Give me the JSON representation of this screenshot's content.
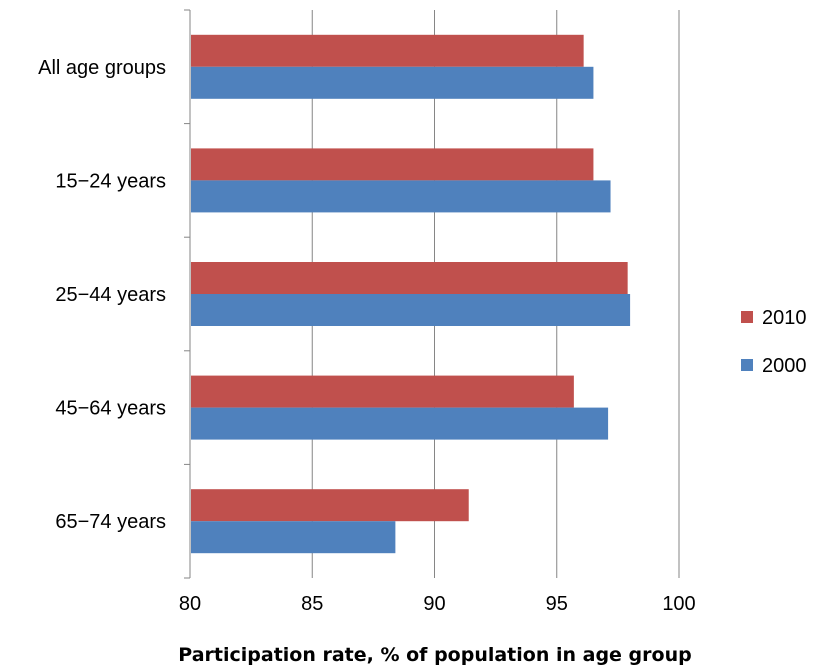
{
  "chart_data": {
    "type": "bar",
    "orientation": "horizontal",
    "categories": [
      "All age groups",
      "15−24 years",
      "25−44 years",
      "45−64 years",
      "65−74 years"
    ],
    "series": [
      {
        "name": "2010",
        "color": "#C0504D",
        "values": [
          96.1,
          96.5,
          97.9,
          95.7,
          91.4
        ]
      },
      {
        "name": "2000",
        "color": "#4F81BD",
        "values": [
          96.5,
          97.2,
          98.0,
          97.1,
          88.4
        ]
      }
    ],
    "xlabel": "Participation rate, % of population in age group",
    "xlim": [
      80,
      100
    ],
    "xticks": [
      80,
      85,
      90,
      95,
      100
    ],
    "grid": "vertical",
    "legend_position": "right"
  }
}
